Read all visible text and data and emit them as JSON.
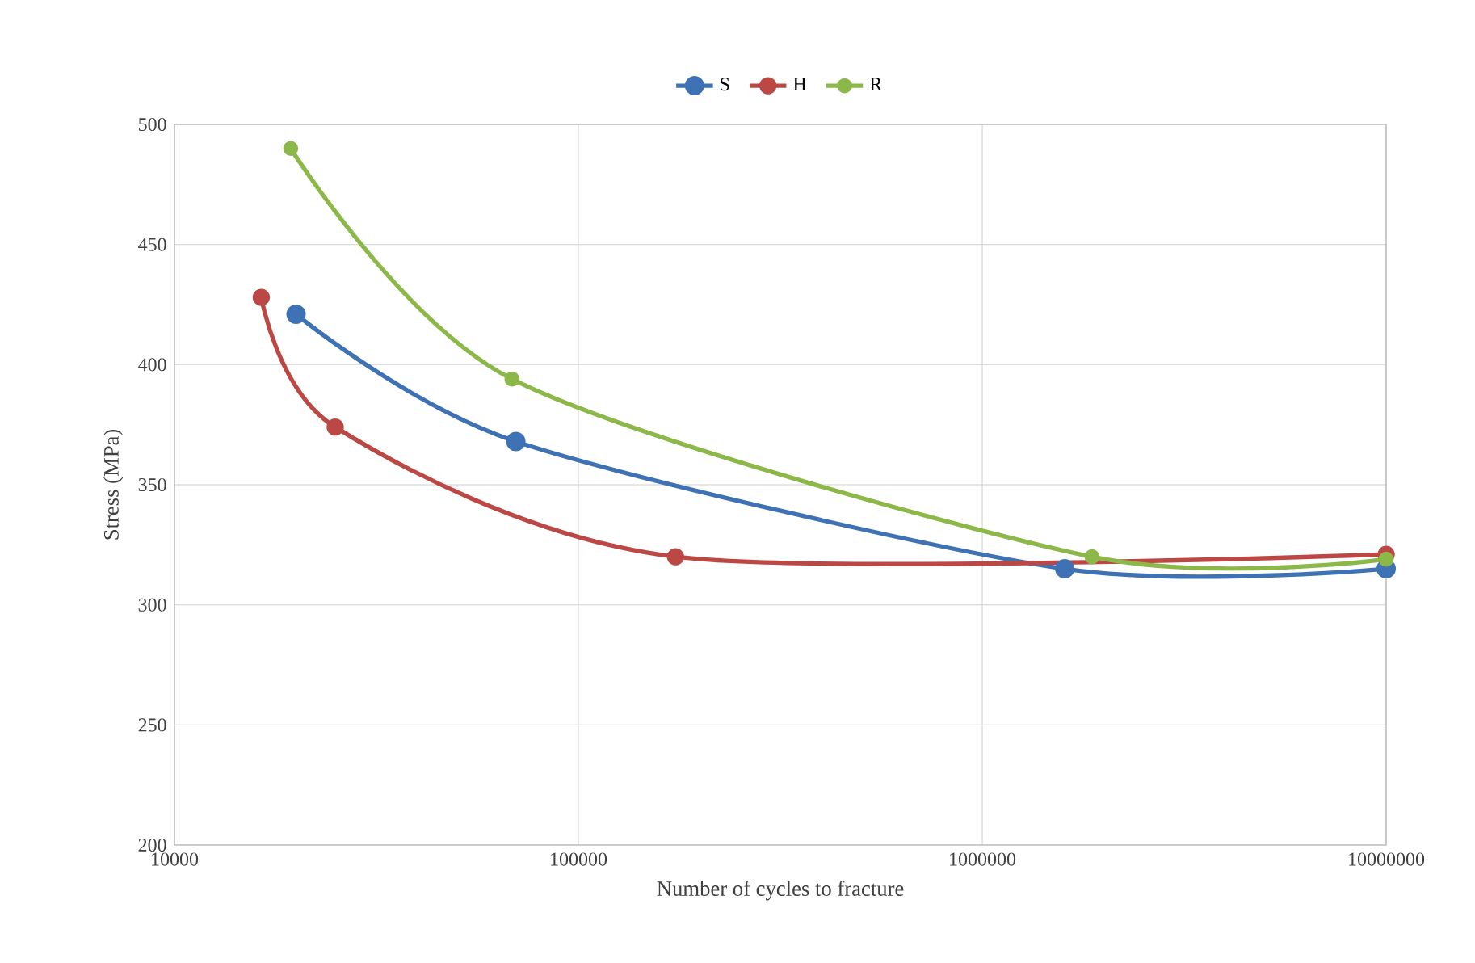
{
  "chart_data": {
    "type": "line",
    "xlabel": "Number of cycles to fracture",
    "ylabel": "Stress (MPa)",
    "log": "x",
    "grid": true,
    "legend": "top",
    "marker": "circle",
    "line_style": "solid",
    "xlim": [
      10000,
      10000000
    ],
    "xticks": [
      10000,
      100000,
      1000000,
      10000000
    ],
    "ylim": [
      200,
      500
    ],
    "yticks": [
      200,
      250,
      300,
      350,
      400,
      450,
      500
    ],
    "series": [
      {
        "name": "S",
        "color": "#3f72b5",
        "x": [
          20000,
          70000,
          1600000,
          10000000
        ],
        "values": [
          421,
          368,
          315,
          315
        ]
      },
      {
        "name": "H",
        "color": "#bc4845",
        "x": [
          16400,
          25000,
          174000,
          10000000
        ],
        "values": [
          428,
          374,
          320,
          321
        ]
      },
      {
        "name": "R",
        "color": "#8cb84a",
        "x": [
          19400,
          68500,
          1870000,
          10000000
        ],
        "values": [
          490,
          394,
          320,
          319
        ]
      }
    ]
  }
}
